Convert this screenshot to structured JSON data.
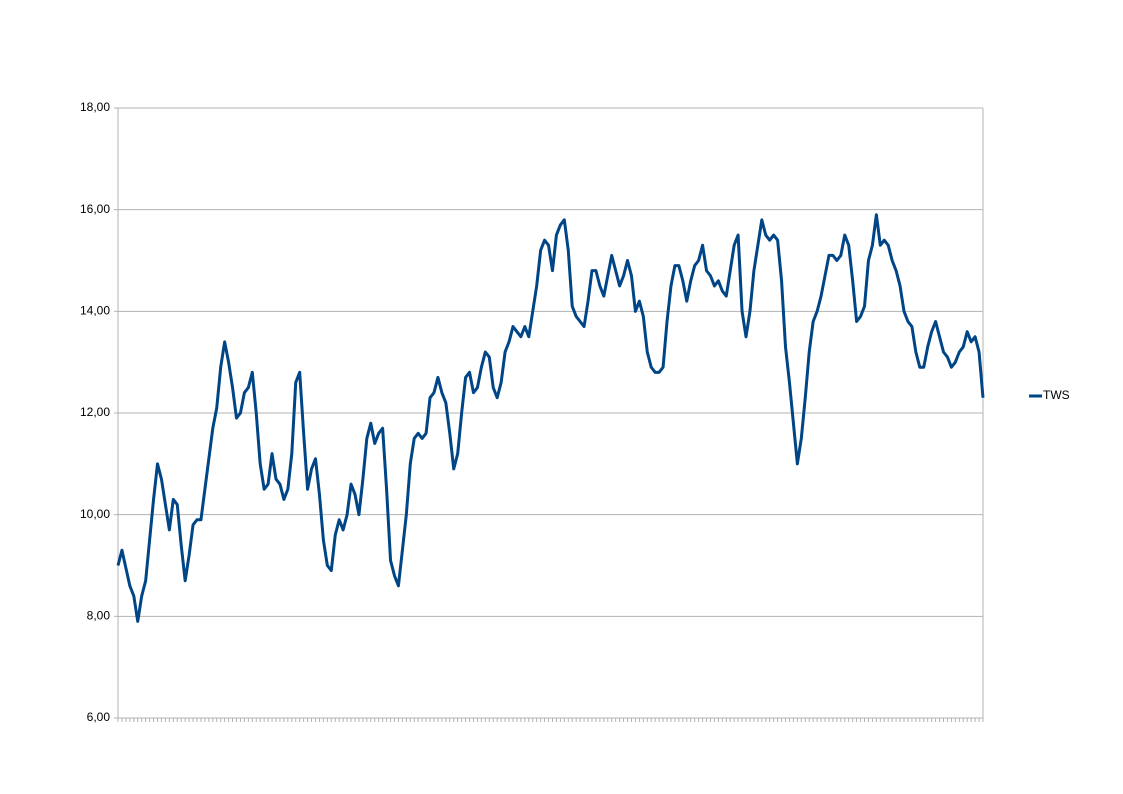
{
  "chart_data": {
    "type": "line",
    "ylim": [
      6,
      18
    ],
    "yticks": [
      {
        "value": 6,
        "label": "6,00"
      },
      {
        "value": 8,
        "label": "8,00"
      },
      {
        "value": 10,
        "label": "10,00"
      },
      {
        "value": 12,
        "label": "12,00"
      },
      {
        "value": 14,
        "label": "14,00"
      },
      {
        "value": 16,
        "label": "16,00"
      },
      {
        "value": 18,
        "label": "18,00"
      }
    ],
    "grid": true,
    "legend": "right",
    "series": [
      {
        "name": "TWS",
        "color": "#004586",
        "values": [
          9.0,
          9.3,
          8.95,
          8.6,
          8.4,
          7.9,
          8.4,
          8.7,
          9.5,
          10.3,
          11.0,
          10.7,
          10.2,
          9.7,
          10.3,
          10.2,
          9.4,
          8.7,
          9.2,
          9.8,
          9.9,
          9.9,
          10.5,
          11.1,
          11.7,
          12.1,
          12.9,
          13.4,
          13.0,
          12.5,
          11.9,
          12.0,
          12.4,
          12.5,
          12.8,
          12.0,
          11.0,
          10.5,
          10.6,
          11.2,
          10.7,
          10.6,
          10.3,
          10.5,
          11.2,
          12.6,
          12.8,
          11.6,
          10.5,
          10.9,
          11.1,
          10.4,
          9.5,
          9.0,
          8.9,
          9.6,
          9.9,
          9.7,
          10.0,
          10.6,
          10.4,
          10.0,
          10.7,
          11.5,
          11.8,
          11.4,
          11.6,
          11.7,
          10.5,
          9.1,
          8.8,
          8.6,
          9.3,
          10.0,
          11.0,
          11.5,
          11.6,
          11.5,
          11.6,
          12.3,
          12.4,
          12.7,
          12.4,
          12.2,
          11.6,
          10.9,
          11.2,
          12.0,
          12.7,
          12.8,
          12.4,
          12.5,
          12.9,
          13.2,
          13.1,
          12.5,
          12.3,
          12.6,
          13.2,
          13.4,
          13.7,
          13.6,
          13.5,
          13.7,
          13.5,
          14.0,
          14.5,
          15.2,
          15.4,
          15.3,
          14.8,
          15.5,
          15.7,
          15.8,
          15.2,
          14.1,
          13.9,
          13.8,
          13.7,
          14.2,
          14.8,
          14.8,
          14.5,
          14.3,
          14.7,
          15.1,
          14.8,
          14.5,
          14.7,
          15.0,
          14.7,
          14.0,
          14.2,
          13.9,
          13.2,
          12.9,
          12.8,
          12.8,
          12.9,
          13.8,
          14.5,
          14.9,
          14.9,
          14.6,
          14.2,
          14.6,
          14.9,
          15.0,
          15.3,
          14.8,
          14.7,
          14.5,
          14.6,
          14.4,
          14.3,
          14.8,
          15.3,
          15.5,
          14.0,
          13.5,
          14.0,
          14.8,
          15.3,
          15.8,
          15.5,
          15.4,
          15.5,
          15.4,
          14.6,
          13.3,
          12.6,
          11.8,
          11.0,
          11.5,
          12.3,
          13.2,
          13.8,
          14.0,
          14.3,
          14.7,
          15.1,
          15.1,
          15.0,
          15.1,
          15.5,
          15.3,
          14.6,
          13.8,
          13.9,
          14.1,
          15.0,
          15.3,
          15.9,
          15.3,
          15.4,
          15.3,
          15.0,
          14.8,
          14.5,
          14.0,
          13.8,
          13.7,
          13.2,
          12.9,
          12.9,
          13.3,
          13.6,
          13.8,
          13.5,
          13.2,
          13.1,
          12.9,
          13.0,
          13.2,
          13.3,
          13.6,
          13.4,
          13.5,
          13.2,
          12.3
        ]
      }
    ]
  }
}
